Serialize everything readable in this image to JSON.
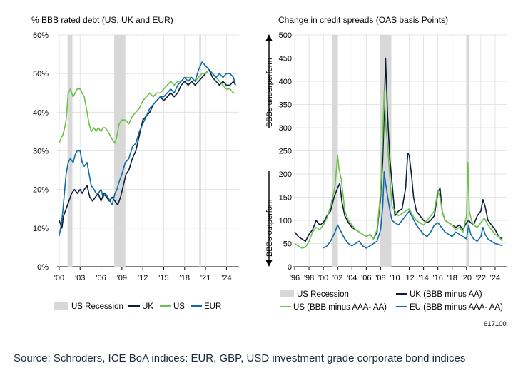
{
  "source": "Source: Schroders, ICE BoA indices: EUR, GBP, USD investment grade corporate bond indices",
  "colors": {
    "uk": "#0d1e3c",
    "us": "#6cc24a",
    "eur": "#0e6aa8",
    "recession": "#d8d8d8",
    "grid": "#dddddd"
  },
  "chart_data": [
    {
      "type": "line",
      "title": "% BBB rated debt (US, UK and EUR)",
      "ylim": [
        0,
        60
      ],
      "xlim": [
        1999.7,
        2025.8
      ],
      "yticks": [
        0,
        10,
        20,
        30,
        40,
        50,
        60
      ],
      "ytick_labels": [
        "0%",
        "10%",
        "20%",
        "30%",
        "40%",
        "50%",
        "60%"
      ],
      "xticks": [
        2000,
        2003,
        2006,
        2009,
        2012,
        2015,
        2018,
        2021,
        2024
      ],
      "xtick_labels": [
        "'00",
        "'03",
        "'06",
        "'09",
        "'12",
        "'15",
        "'18",
        "'21",
        "'24"
      ],
      "recessions": [
        [
          2001.2,
          2001.9
        ],
        [
          2007.9,
          2009.5
        ],
        [
          2020.1,
          2020.35
        ]
      ],
      "legend": [
        "US Recession",
        "UK",
        "US",
        "EUR"
      ],
      "series": [
        {
          "name": "UK",
          "color": "#0d1e3c",
          "x": [
            2000.0,
            2000.2,
            2000.4,
            2000.6,
            2001.0,
            2001.4,
            2001.8,
            2002.2,
            2002.6,
            2003.0,
            2003.3,
            2003.6,
            2004.0,
            2004.4,
            2004.8,
            2005.2,
            2005.6,
            2006.0,
            2006.4,
            2006.8,
            2007.2,
            2007.6,
            2008.0,
            2008.4,
            2008.8,
            2009.2,
            2009.6,
            2010.0,
            2010.5,
            2011.0,
            2011.5,
            2012.0,
            2012.5,
            2013.0,
            2013.5,
            2014.0,
            2014.5,
            2015.0,
            2015.5,
            2016.0,
            2016.5,
            2017.0,
            2017.5,
            2018.0,
            2018.5,
            2019.0,
            2019.5,
            2020.0,
            2020.5,
            2021.0,
            2021.5,
            2022.0,
            2022.5,
            2023.0,
            2023.5,
            2024.0,
            2024.5,
            2025.0,
            2025.3
          ],
          "y": [
            12,
            11,
            10,
            13,
            15,
            17,
            19,
            20,
            19,
            20,
            19,
            20,
            21,
            18,
            17,
            18,
            19,
            17,
            19,
            18,
            17,
            18,
            17,
            16,
            18,
            21,
            24,
            25,
            28,
            30,
            34,
            38,
            39,
            40,
            42,
            43,
            44,
            43,
            44,
            45,
            44,
            45,
            47,
            48,
            47,
            48,
            47,
            48,
            49,
            50,
            51,
            49,
            48,
            47,
            48,
            47,
            47,
            48,
            47
          ]
        },
        {
          "name": "US",
          "color": "#6cc24a",
          "x": [
            2000.0,
            2000.2,
            2000.5,
            2000.8,
            2001.0,
            2001.3,
            2001.6,
            2002.0,
            2002.3,
            2002.6,
            2003.0,
            2003.3,
            2003.6,
            2004.0,
            2004.3,
            2004.6,
            2005.0,
            2005.3,
            2005.6,
            2006.0,
            2006.3,
            2006.6,
            2007.0,
            2007.3,
            2007.6,
            2008.0,
            2008.3,
            2008.6,
            2009.0,
            2009.5,
            2010.0,
            2010.5,
            2011.0,
            2011.5,
            2012.0,
            2012.5,
            2013.0,
            2013.5,
            2014.0,
            2014.5,
            2015.0,
            2015.5,
            2016.0,
            2016.5,
            2017.0,
            2017.5,
            2018.0,
            2018.5,
            2019.0,
            2019.5,
            2020.0,
            2020.5,
            2021.0,
            2021.5,
            2022.0,
            2022.5,
            2023.0,
            2023.5,
            2024.0,
            2024.5,
            2025.0,
            2025.3
          ],
          "y": [
            32,
            33,
            34,
            36,
            38,
            45,
            46,
            44,
            45,
            46,
            46,
            45,
            44,
            40,
            37,
            35,
            36,
            35,
            36,
            35,
            36,
            36,
            35,
            34,
            33,
            32,
            34,
            37,
            38,
            38,
            37,
            39,
            40,
            41,
            43,
            44,
            45,
            44,
            45,
            45,
            46,
            47,
            48,
            47,
            48,
            48,
            49,
            49,
            49,
            48,
            49,
            50,
            50,
            51,
            50,
            49,
            48,
            47,
            46,
            46,
            45,
            45
          ]
        },
        {
          "name": "EUR",
          "color": "#0e6aa8",
          "x": [
            2000.0,
            2000.1,
            2000.3,
            2000.5,
            2000.8,
            2001.0,
            2001.3,
            2001.6,
            2002.0,
            2002.3,
            2002.6,
            2003.0,
            2003.3,
            2003.6,
            2004.0,
            2004.3,
            2004.6,
            2005.0,
            2005.3,
            2005.6,
            2006.0,
            2006.3,
            2006.6,
            2007.0,
            2007.3,
            2007.6,
            2008.0,
            2008.3,
            2008.6,
            2009.0,
            2009.5,
            2010.0,
            2010.5,
            2011.0,
            2011.5,
            2012.0,
            2012.5,
            2013.0,
            2013.5,
            2014.0,
            2014.5,
            2015.0,
            2015.5,
            2016.0,
            2016.5,
            2017.0,
            2017.5,
            2018.0,
            2018.5,
            2019.0,
            2019.5,
            2020.0,
            2020.5,
            2021.0,
            2021.5,
            2022.0,
            2022.5,
            2023.0,
            2023.5,
            2024.0,
            2024.5,
            2025.0,
            2025.3
          ],
          "y": [
            8,
            9,
            11,
            14,
            20,
            24,
            27,
            28,
            27,
            29,
            30,
            30,
            27,
            26,
            27,
            24,
            21,
            20,
            19,
            19,
            20,
            18,
            19,
            18,
            17,
            16,
            19,
            20,
            22,
            24,
            27,
            28,
            31,
            32,
            35,
            37,
            39,
            41,
            42,
            43,
            44,
            44,
            45,
            46,
            45,
            47,
            48,
            49,
            48,
            49,
            48,
            51,
            53,
            52,
            51,
            50,
            49,
            50,
            49,
            50,
            50,
            49,
            47
          ]
        }
      ]
    },
    {
      "type": "line",
      "title": "Change in credit spreads (OAS basis Points)",
      "ylim": [
        0,
        500
      ],
      "xlim": [
        1995.7,
        2025.6
      ],
      "yticks": [
        0,
        50,
        100,
        150,
        200,
        250,
        300,
        350,
        400,
        450,
        500
      ],
      "ytick_labels": [
        "0",
        "50",
        "100",
        "150",
        "200",
        "250",
        "300",
        "350",
        "400",
        "450",
        "500"
      ],
      "xticks": [
        1996,
        1998,
        2000,
        2002,
        2004,
        2006,
        2008,
        2010,
        2012,
        2014,
        2016,
        2018,
        2020,
        2022,
        2024
      ],
      "xtick_labels": [
        "'96",
        "'98",
        "'00",
        "'02",
        "'04",
        "'06",
        "'08",
        "'10",
        "'12",
        "'14",
        "'16",
        "'18",
        "'20",
        "'22",
        "'24"
      ],
      "recessions": [
        [
          2001.2,
          2001.9
        ],
        [
          2007.9,
          2009.5
        ],
        [
          2020.1,
          2020.35
        ]
      ],
      "annotation_top": "BBBs underperform",
      "annotation_bottom": "BBBs outperform",
      "legend": [
        "US Recession",
        "UK (BBB minus AA)",
        "US (BBB minus AAA- AA)",
        "EU (BBB minus AAA- AA)"
      ],
      "code": "617100",
      "series": [
        {
          "name": "UK (BBB minus AA)",
          "color": "#0d1e3c",
          "x": [
            1996.0,
            1996.5,
            1997.0,
            1997.5,
            1998.0,
            1998.5,
            1999.0,
            1999.5,
            2000.0,
            2000.5,
            2001.0,
            2001.5,
            2002.0,
            2002.3,
            2002.6,
            2003.0,
            2003.5,
            2004.0,
            2004.5,
            2005.0,
            2005.5,
            2006.0,
            2006.5,
            2007.0,
            2007.5,
            2008.0,
            2008.3,
            2008.5,
            2008.7,
            2009.0,
            2009.3,
            2009.6,
            2010.0,
            2010.5,
            2011.0,
            2011.5,
            2011.8,
            2012.0,
            2012.3,
            2012.6,
            2013.0,
            2013.5,
            2014.0,
            2014.5,
            2015.0,
            2015.5,
            2016.0,
            2016.3,
            2016.6,
            2017.0,
            2017.5,
            2018.0,
            2018.5,
            2019.0,
            2019.5,
            2020.0,
            2020.3,
            2020.6,
            2021.0,
            2021.5,
            2022.0,
            2022.3,
            2022.6,
            2023.0,
            2023.5,
            2024.0,
            2024.5,
            2025.0
          ],
          "y": [
            75,
            65,
            60,
            55,
            70,
            80,
            100,
            90,
            95,
            110,
            120,
            150,
            170,
            180,
            140,
            110,
            95,
            85,
            80,
            75,
            70,
            65,
            70,
            60,
            75,
            150,
            230,
            330,
            450,
            320,
            230,
            180,
            110,
            120,
            125,
            170,
            245,
            240,
            200,
            150,
            120,
            110,
            100,
            95,
            100,
            110,
            160,
            170,
            120,
            100,
            95,
            90,
            85,
            90,
            80,
            95,
            100,
            95,
            90,
            110,
            120,
            145,
            130,
            100,
            90,
            80,
            65,
            60
          ]
        },
        {
          "name": "US (BBB minus AAA- AA)",
          "color": "#6cc24a",
          "x": [
            1996.0,
            1996.5,
            1997.0,
            1997.5,
            1998.0,
            1998.5,
            1999.0,
            1999.5,
            2000.0,
            2000.5,
            2001.0,
            2001.3,
            2001.6,
            2002.0,
            2002.2,
            2002.5,
            2002.8,
            2003.0,
            2003.5,
            2004.0,
            2004.5,
            2005.0,
            2005.5,
            2006.0,
            2006.5,
            2007.0,
            2007.5,
            2008.0,
            2008.3,
            2008.5,
            2008.7,
            2009.0,
            2009.3,
            2009.6,
            2010.0,
            2010.5,
            2011.0,
            2011.5,
            2012.0,
            2012.5,
            2013.0,
            2013.5,
            2014.0,
            2014.5,
            2015.0,
            2015.5,
            2016.0,
            2016.3,
            2016.6,
            2017.0,
            2017.5,
            2018.0,
            2018.5,
            2019.0,
            2019.5,
            2020.0,
            2020.2,
            2020.4,
            2020.7,
            2021.0,
            2021.5,
            2022.0,
            2022.5,
            2023.0,
            2023.5,
            2024.0,
            2024.5,
            2025.0
          ],
          "y": [
            50,
            45,
            40,
            42,
            55,
            75,
            85,
            80,
            90,
            105,
            130,
            150,
            170,
            240,
            210,
            190,
            150,
            120,
            100,
            90,
            80,
            75,
            70,
            65,
            70,
            60,
            80,
            160,
            280,
            380,
            310,
            260,
            190,
            130,
            120,
            110,
            115,
            120,
            125,
            110,
            100,
            95,
            90,
            100,
            110,
            120,
            165,
            150,
            120,
            100,
            95,
            90,
            80,
            85,
            75,
            110,
            225,
            120,
            100,
            90,
            85,
            95,
            105,
            90,
            80,
            70,
            65,
            55
          ]
        },
        {
          "name": "EU (BBB minus AAA- AA)",
          "color": "#0e6aa8",
          "x": [
            2000.0,
            2000.5,
            2001.0,
            2001.5,
            2002.0,
            2002.5,
            2003.0,
            2003.5,
            2004.0,
            2004.5,
            2005.0,
            2005.5,
            2006.0,
            2006.5,
            2007.0,
            2007.5,
            2008.0,
            2008.3,
            2008.5,
            2008.7,
            2009.0,
            2009.3,
            2009.6,
            2010.0,
            2010.5,
            2011.0,
            2011.5,
            2012.0,
            2012.5,
            2013.0,
            2013.5,
            2014.0,
            2014.5,
            2015.0,
            2015.5,
            2016.0,
            2016.5,
            2017.0,
            2017.5,
            2018.0,
            2018.5,
            2019.0,
            2019.5,
            2020.0,
            2020.3,
            2020.6,
            2021.0,
            2021.5,
            2022.0,
            2022.3,
            2022.6,
            2023.0,
            2023.5,
            2024.0,
            2024.5,
            2025.0
          ],
          "y": [
            40,
            45,
            55,
            70,
            90,
            75,
            60,
            50,
            45,
            50,
            55,
            45,
            40,
            45,
            50,
            55,
            80,
            130,
            205,
            180,
            150,
            120,
            100,
            95,
            90,
            100,
            110,
            120,
            105,
            90,
            80,
            70,
            65,
            75,
            90,
            95,
            85,
            75,
            70,
            65,
            75,
            70,
            65,
            60,
            90,
            70,
            60,
            55,
            65,
            85,
            70,
            60,
            55,
            50,
            48,
            45
          ]
        }
      ]
    }
  ]
}
